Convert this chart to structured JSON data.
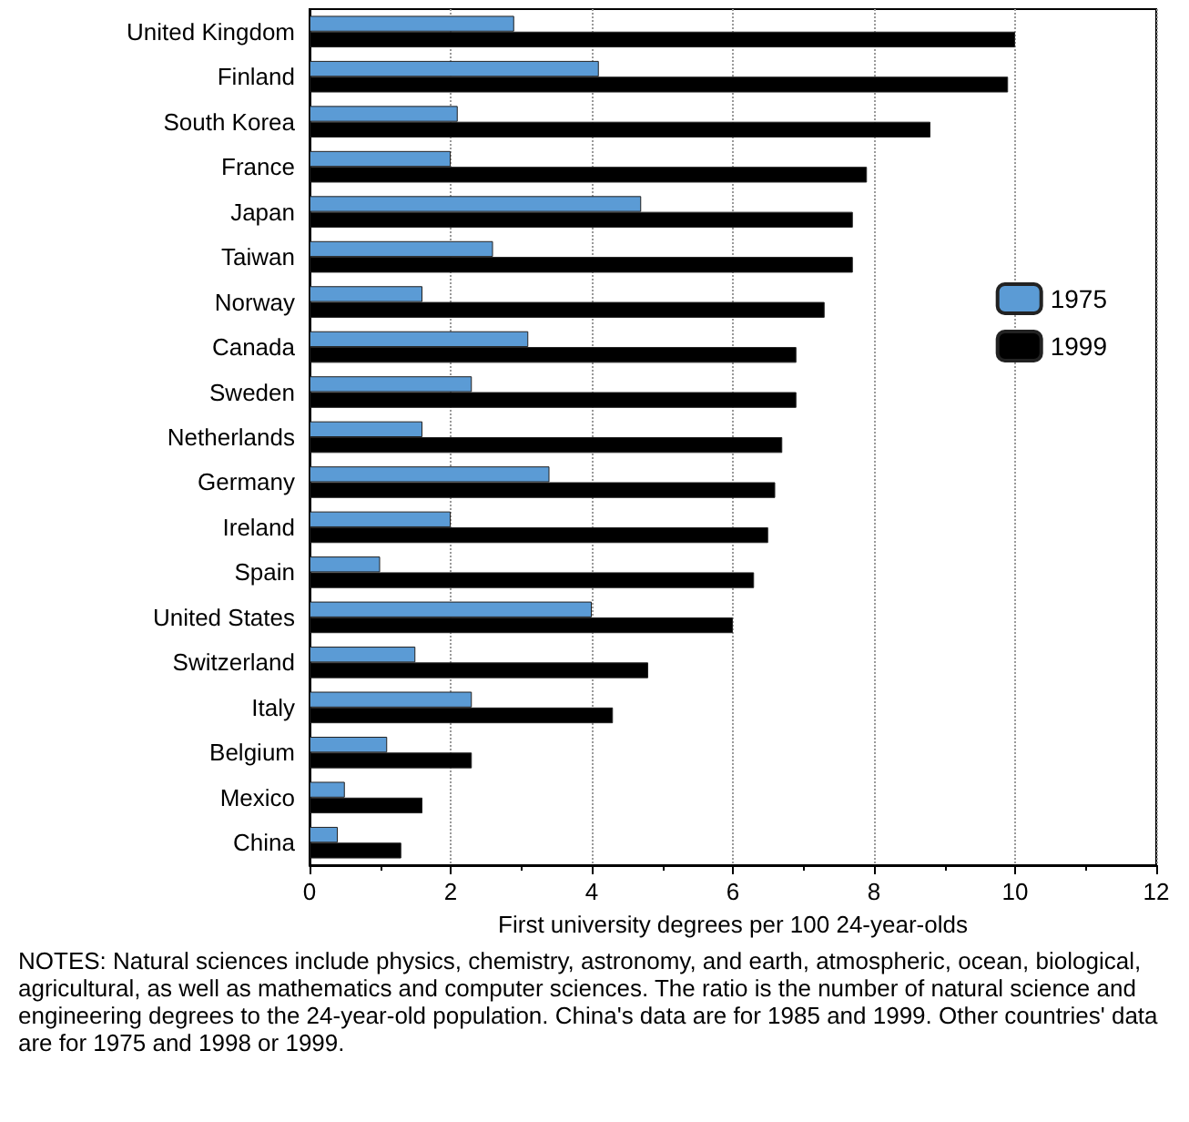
{
  "chart_data": {
    "type": "bar",
    "orientation": "horizontal",
    "categories": [
      "United Kingdom",
      "Finland",
      "South Korea",
      "France",
      "Japan",
      "Taiwan",
      "Norway",
      "Canada",
      "Sweden",
      "Netherlands",
      "Germany",
      "Ireland",
      "Spain",
      "United States",
      "Switzerland",
      "Italy",
      "Belgium",
      "Mexico",
      "China"
    ],
    "series": [
      {
        "name": "1975",
        "color": "#5b9bd5",
        "values": [
          2.9,
          4.1,
          2.1,
          2.0,
          4.7,
          2.6,
          1.6,
          3.1,
          2.3,
          1.6,
          3.4,
          2.0,
          1.0,
          4.0,
          1.5,
          2.3,
          1.1,
          0.5,
          0.4
        ]
      },
      {
        "name": "1999",
        "color": "#000000",
        "values": [
          10.0,
          9.9,
          8.8,
          7.9,
          7.7,
          7.7,
          7.3,
          6.9,
          6.9,
          6.7,
          6.6,
          6.5,
          6.3,
          6.0,
          4.8,
          4.3,
          2.3,
          1.6,
          1.3
        ]
      }
    ],
    "xlabel": "First university degrees per 100 24-year-olds",
    "xlim": [
      0,
      12
    ],
    "xticks": [
      0,
      2,
      4,
      6,
      8,
      10,
      12
    ],
    "grid": "x",
    "legend": "right",
    "annotations": [
      "NOTES: Natural sciences include physics, chemistry, astronomy, and earth, atmospheric, ocean, biological, agricultural, as well as mathematics and computer sciences. The ratio is the number of natural science and engineering degrees to the 24-year-old population. China's data are for 1985 and 1999. Other countries' data are for 1975 and 1998 or 1999."
    ]
  }
}
